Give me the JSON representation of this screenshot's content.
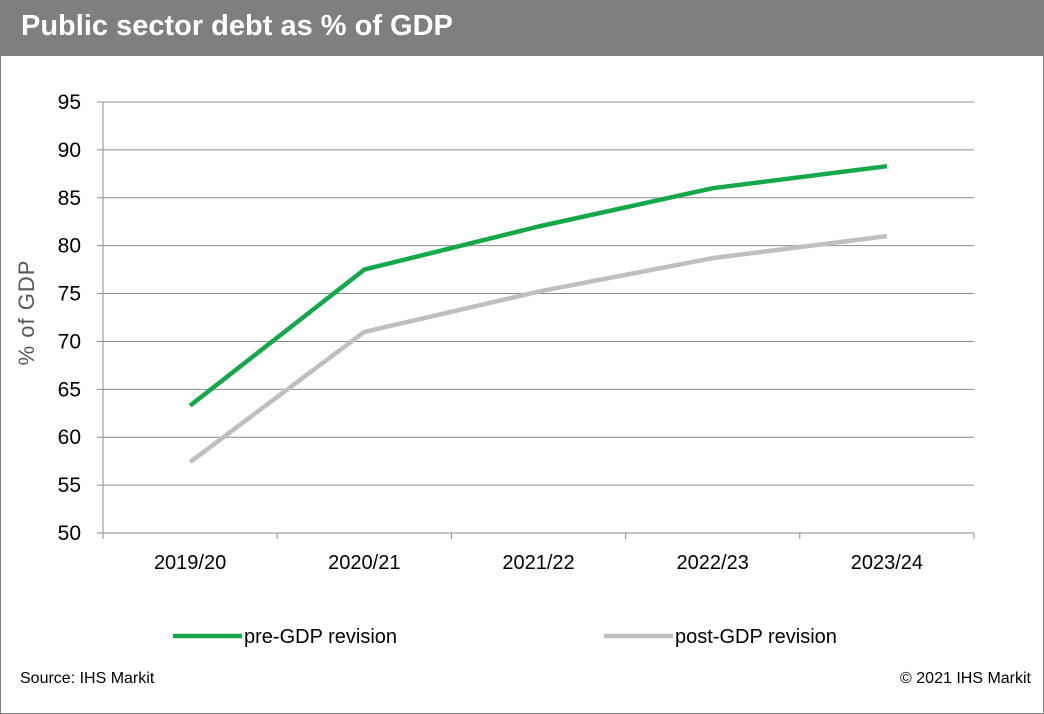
{
  "header": {
    "title": "Public sector debt as % of GDP"
  },
  "footer": {
    "source": "Source: IHS Markit",
    "copyright": "© 2021 IHS Markit"
  },
  "colors": {
    "title_bar": "#7f7f7f",
    "pre_series": "#14a84b",
    "post_series": "#bfbfbf",
    "grid": "#8c8c8c",
    "axis_label": "#595959"
  },
  "chart_data": {
    "type": "line",
    "title": "Public sector debt as % of GDP",
    "xlabel": "",
    "ylabel": "% of GDP",
    "ylim": [
      50,
      95
    ],
    "yticks": [
      50,
      55,
      60,
      65,
      70,
      75,
      80,
      85,
      90,
      95
    ],
    "categories": [
      "2019/20",
      "2020/21",
      "2021/22",
      "2022/23",
      "2023/24"
    ],
    "grid": true,
    "legend_position": "bottom",
    "series": [
      {
        "name": "pre-GDP revision",
        "color": "#14a84b",
        "values": [
          63.3,
          77.5,
          82.0,
          86.0,
          88.3
        ]
      },
      {
        "name": "post-GDP revision",
        "color": "#bfbfbf",
        "values": [
          57.4,
          71.0,
          75.2,
          78.7,
          81.0
        ]
      }
    ]
  }
}
